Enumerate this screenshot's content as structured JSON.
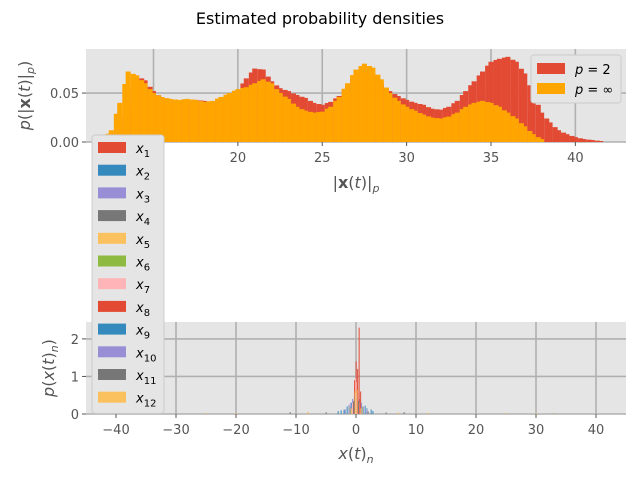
{
  "figure": {
    "title": "Estimated probability densities"
  },
  "chart_data": [
    {
      "type": "bar",
      "subtype": "histogram",
      "xlabel": "|x(t)|_p",
      "xlabel_display": {
        "pre": "|",
        "bold": "x",
        "mid": "(",
        "it": "t",
        "post": ")|",
        "sub": "p"
      },
      "ylabel": "p(|x(t)|_p)",
      "xlim": [
        11,
        43
      ],
      "ylim": [
        0,
        0.095
      ],
      "xticks": [
        15,
        20,
        25,
        30,
        35,
        40
      ],
      "yticks": [
        0.0,
        0.05
      ],
      "ytick_labels": [
        "0.00",
        "0.05"
      ],
      "grid": true,
      "legend": {
        "placement": "top-right"
      },
      "bin_width": 0.3,
      "series": [
        {
          "name": "p = 2",
          "legend_label": {
            "var": "p",
            "eq": " = 2"
          },
          "color": "#E24A33",
          "points": [
            [
              12.5,
              0.004
            ],
            [
              13.0,
              0.012
            ],
            [
              13.5,
              0.035
            ],
            [
              14.0,
              0.068
            ],
            [
              14.5,
              0.063
            ],
            [
              15.0,
              0.052
            ],
            [
              15.5,
              0.045
            ],
            [
              16.0,
              0.043
            ],
            [
              16.5,
              0.042
            ],
            [
              17.0,
              0.041
            ],
            [
              17.5,
              0.043
            ],
            [
              18.0,
              0.042
            ],
            [
              18.5,
              0.04
            ],
            [
              19.0,
              0.041
            ],
            [
              19.5,
              0.045
            ],
            [
              20.0,
              0.052
            ],
            [
              20.5,
              0.065
            ],
            [
              21.0,
              0.075
            ],
            [
              21.5,
              0.074
            ],
            [
              22.0,
              0.062
            ],
            [
              22.5,
              0.055
            ],
            [
              23.0,
              0.052
            ],
            [
              23.5,
              0.048
            ],
            [
              24.0,
              0.045
            ],
            [
              24.5,
              0.04
            ],
            [
              25.0,
              0.038
            ],
            [
              25.5,
              0.041
            ],
            [
              26.0,
              0.047
            ],
            [
              26.5,
              0.058
            ],
            [
              27.0,
              0.068
            ],
            [
              27.5,
              0.072
            ],
            [
              28.0,
              0.07
            ],
            [
              28.5,
              0.06
            ],
            [
              29.0,
              0.052
            ],
            [
              29.5,
              0.047
            ],
            [
              30.0,
              0.043
            ],
            [
              30.5,
              0.04
            ],
            [
              31.0,
              0.038
            ],
            [
              31.5,
              0.034
            ],
            [
              32.0,
              0.033
            ],
            [
              32.5,
              0.036
            ],
            [
              33.0,
              0.042
            ],
            [
              33.5,
              0.052
            ],
            [
              34.0,
              0.062
            ],
            [
              34.5,
              0.072
            ],
            [
              35.0,
              0.082
            ],
            [
              35.5,
              0.085
            ],
            [
              36.0,
              0.087
            ],
            [
              36.5,
              0.082
            ],
            [
              37.0,
              0.07
            ],
            [
              37.5,
              0.05
            ],
            [
              38.0,
              0.03
            ],
            [
              38.5,
              0.02
            ],
            [
              39.0,
              0.012
            ],
            [
              39.5,
              0.008
            ],
            [
              40.0,
              0.005
            ],
            [
              40.5,
              0.003
            ],
            [
              41.0,
              0.002
            ],
            [
              41.5,
              0.001
            ]
          ]
        },
        {
          "name": "p = ∞",
          "legend_label": {
            "var": "p",
            "eq": " = ∞"
          },
          "color": "#FFA500",
          "points": [
            [
              12.0,
              0.003
            ],
            [
              12.5,
              0.012
            ],
            [
              13.0,
              0.04
            ],
            [
              13.5,
              0.072
            ],
            [
              14.0,
              0.068
            ],
            [
              14.5,
              0.06
            ],
            [
              15.0,
              0.05
            ],
            [
              15.5,
              0.046
            ],
            [
              16.0,
              0.044
            ],
            [
              16.5,
              0.043
            ],
            [
              17.0,
              0.044
            ],
            [
              17.5,
              0.043
            ],
            [
              18.0,
              0.041
            ],
            [
              18.5,
              0.042
            ],
            [
              19.0,
              0.046
            ],
            [
              19.5,
              0.05
            ],
            [
              20.0,
              0.054
            ],
            [
              20.5,
              0.056
            ],
            [
              21.0,
              0.06
            ],
            [
              21.5,
              0.064
            ],
            [
              22.0,
              0.06
            ],
            [
              22.5,
              0.05
            ],
            [
              23.0,
              0.044
            ],
            [
              23.5,
              0.036
            ],
            [
              24.0,
              0.032
            ],
            [
              24.5,
              0.03
            ],
            [
              25.0,
              0.031
            ],
            [
              25.5,
              0.036
            ],
            [
              26.0,
              0.046
            ],
            [
              26.5,
              0.06
            ],
            [
              27.0,
              0.074
            ],
            [
              27.5,
              0.08
            ],
            [
              28.0,
              0.076
            ],
            [
              28.5,
              0.064
            ],
            [
              29.0,
              0.05
            ],
            [
              29.5,
              0.042
            ],
            [
              30.0,
              0.036
            ],
            [
              30.5,
              0.032
            ],
            [
              31.0,
              0.028
            ],
            [
              31.5,
              0.025
            ],
            [
              32.0,
              0.024
            ],
            [
              32.5,
              0.026
            ],
            [
              33.0,
              0.03
            ],
            [
              33.5,
              0.036
            ],
            [
              34.0,
              0.04
            ],
            [
              34.5,
              0.042
            ],
            [
              35.0,
              0.04
            ],
            [
              35.5,
              0.036
            ],
            [
              36.0,
              0.03
            ],
            [
              36.5,
              0.024
            ],
            [
              37.0,
              0.016
            ],
            [
              37.5,
              0.008
            ],
            [
              38.0,
              0.003
            ]
          ]
        }
      ]
    },
    {
      "type": "bar",
      "subtype": "histogram",
      "xlabel": "x(t)_n",
      "xlabel_display": {
        "it": "x",
        "mid": "(",
        "it2": "t",
        "post": ")",
        "sub": "n"
      },
      "ylabel": "p(x(t)_n)",
      "xlim": [
        -45,
        45
      ],
      "ylim": [
        0,
        2.45
      ],
      "xticks": [
        -40,
        -30,
        -20,
        -10,
        0,
        10,
        20,
        30,
        40
      ],
      "yticks": [
        0,
        1,
        2
      ],
      "ytick_labels": [
        "0",
        "1",
        "2"
      ],
      "grid": true,
      "legend": {
        "placement": "left-outside-above"
      },
      "bin_width": 0.12,
      "series": [
        {
          "name": "x1",
          "legend_label": {
            "var": "x",
            "sub": "1"
          },
          "color": "#E24A33",
          "points": [
            [
              -0.5,
              0.3
            ],
            [
              -0.2,
              0.8
            ],
            [
              0.0,
              1.4
            ],
            [
              0.2,
              0.7
            ],
            [
              0.5,
              0.25
            ],
            [
              0.9,
              0.1
            ],
            [
              -0.9,
              0.1
            ]
          ]
        },
        {
          "name": "x2",
          "legend_label": {
            "var": "x",
            "sub": "2"
          },
          "color": "#348ABD",
          "points": [
            [
              -2.5,
              0.1
            ],
            [
              -1.5,
              0.2
            ],
            [
              -0.8,
              0.3
            ],
            [
              0.8,
              0.28
            ],
            [
              1.5,
              0.22
            ],
            [
              2.5,
              0.12
            ]
          ]
        },
        {
          "name": "x3",
          "legend_label": {
            "var": "x",
            "sub": "3"
          },
          "color": "#988ED5",
          "points": [
            [
              -1.2,
              0.25
            ],
            [
              -0.6,
              0.4
            ],
            [
              0.0,
              0.55
            ],
            [
              0.6,
              0.4
            ],
            [
              1.2,
              0.2
            ]
          ]
        },
        {
          "name": "x4",
          "legend_label": {
            "var": "x",
            "sub": "4"
          },
          "color": "#777777",
          "points": [
            [
              -11,
              0.05
            ],
            [
              -8,
              0.04
            ],
            [
              -5,
              0.05
            ],
            [
              -2,
              0.08
            ],
            [
              2,
              0.07
            ],
            [
              5,
              0.04
            ],
            [
              8,
              0.05
            ]
          ]
        },
        {
          "name": "x5",
          "legend_label": {
            "var": "x",
            "sub": "5"
          },
          "color": "#FBC15E",
          "points": [
            [
              -40,
              0.03
            ],
            [
              -35,
              0.02
            ],
            [
              -25,
              0.03
            ],
            [
              -20,
              0.03
            ],
            [
              -8,
              0.06
            ],
            [
              7,
              0.05
            ],
            [
              12,
              0.04
            ],
            [
              25,
              0.03
            ],
            [
              30,
              0.03
            ]
          ]
        },
        {
          "name": "x6",
          "legend_label": {
            "var": "x",
            "sub": "6"
          },
          "color": "#8EBA42",
          "points": [
            [
              -0.3,
              0.45
            ],
            [
              0.3,
              0.45
            ],
            [
              -1.0,
              0.2
            ],
            [
              1.0,
              0.2
            ],
            [
              33,
              0.02
            ]
          ]
        },
        {
          "name": "x7",
          "legend_label": {
            "var": "x",
            "sub": "7"
          },
          "color": "#FFB5B8",
          "points": [
            [
              -0.1,
              0.95
            ],
            [
              0.1,
              0.85
            ],
            [
              -0.3,
              0.6
            ],
            [
              0.35,
              0.55
            ],
            [
              -0.6,
              0.3
            ],
            [
              0.6,
              0.3
            ]
          ]
        },
        {
          "name": "x8",
          "legend_label": {
            "var": "x",
            "sub": "8"
          },
          "color": "#E24A33",
          "points": [
            [
              0.5,
              2.3
            ],
            [
              0.25,
              1.2
            ],
            [
              -0.25,
              0.9
            ],
            [
              0.75,
              0.6
            ]
          ]
        },
        {
          "name": "x9",
          "legend_label": {
            "var": "x",
            "sub": "9"
          },
          "color": "#348ABD",
          "points": [
            [
              -3,
              0.08
            ],
            [
              -2,
              0.12
            ],
            [
              1.8,
              0.15
            ],
            [
              2.8,
              0.08
            ]
          ]
        },
        {
          "name": "x10",
          "legend_label": {
            "var": "x",
            "sub": "10"
          },
          "color": "#988ED5",
          "points": [
            [
              -1.8,
              0.12
            ],
            [
              -0.9,
              0.3
            ],
            [
              0.9,
              0.3
            ],
            [
              1.8,
              0.12
            ]
          ]
        },
        {
          "name": "x11",
          "legend_label": {
            "var": "x",
            "sub": "11"
          },
          "color": "#777777",
          "points": [
            [
              -0.4,
              0.35
            ],
            [
              0.4,
              0.35
            ],
            [
              -0.2,
              0.5
            ]
          ]
        },
        {
          "name": "x12",
          "legend_label": {
            "var": "x",
            "sub": "12"
          },
          "color": "#FBC15E",
          "points": [
            [
              -0.8,
              0.15
            ],
            [
              -0.15,
              0.6
            ],
            [
              0.15,
              0.65
            ],
            [
              0.8,
              0.15
            ]
          ]
        }
      ]
    }
  ]
}
